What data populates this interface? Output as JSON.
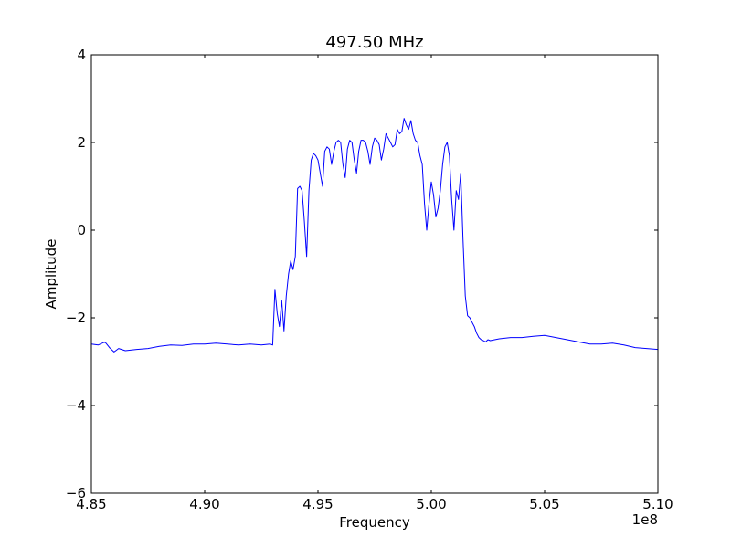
{
  "chart_data": {
    "type": "line",
    "title": "497.50 MHz",
    "xlabel": "Frequency",
    "ylabel": "Amplitude",
    "x_offset_label": "1e8",
    "xlim": [
      4.85,
      5.1
    ],
    "ylim": [
      -6,
      4
    ],
    "xticks": [
      4.85,
      4.9,
      4.95,
      5.0,
      5.05,
      5.1
    ],
    "xtick_labels": [
      "4.85",
      "4.90",
      "4.95",
      "5.00",
      "5.05",
      "5.10"
    ],
    "yticks": [
      -6,
      -4,
      -2,
      0,
      2,
      4
    ],
    "ytick_labels": [
      "−6",
      "−4",
      "−2",
      "0",
      "2",
      "4"
    ],
    "grid": false,
    "legend": "none",
    "series": [
      {
        "color": "#0000ff",
        "x": [
          4.85,
          4.853,
          4.856,
          4.858,
          4.86,
          4.862,
          4.865,
          4.87,
          4.875,
          4.88,
          4.885,
          4.89,
          4.895,
          4.9,
          4.905,
          4.91,
          4.915,
          4.92,
          4.925,
          4.929,
          4.93,
          4.931,
          4.932,
          4.933,
          4.934,
          4.935,
          4.936,
          4.937,
          4.938,
          4.939,
          4.94,
          4.941,
          4.942,
          4.943,
          4.944,
          4.945,
          4.946,
          4.947,
          4.948,
          4.949,
          4.95,
          4.951,
          4.952,
          4.953,
          4.954,
          4.955,
          4.956,
          4.957,
          4.958,
          4.959,
          4.96,
          4.961,
          4.962,
          4.963,
          4.964,
          4.965,
          4.966,
          4.967,
          4.968,
          4.969,
          4.97,
          4.971,
          4.972,
          4.973,
          4.974,
          4.975,
          4.976,
          4.977,
          4.978,
          4.979,
          4.98,
          4.981,
          4.982,
          4.983,
          4.984,
          4.985,
          4.986,
          4.987,
          4.988,
          4.989,
          4.99,
          4.991,
          4.992,
          4.993,
          4.994,
          4.995,
          4.996,
          4.997,
          4.998,
          4.999,
          5.0,
          5.001,
          5.002,
          5.003,
          5.004,
          5.005,
          5.006,
          5.007,
          5.008,
          5.009,
          5.01,
          5.011,
          5.012,
          5.013,
          5.014,
          5.015,
          5.016,
          5.017,
          5.018,
          5.019,
          5.02,
          5.021,
          5.022,
          5.023,
          5.024,
          5.025,
          5.026,
          5.028,
          5.03,
          5.035,
          5.04,
          5.045,
          5.05,
          5.055,
          5.06,
          5.065,
          5.07,
          5.075,
          5.08,
          5.085,
          5.09,
          5.095,
          5.1
        ],
        "y": [
          -2.6,
          -2.62,
          -2.55,
          -2.68,
          -2.78,
          -2.7,
          -2.75,
          -2.72,
          -2.7,
          -2.65,
          -2.62,
          -2.63,
          -2.6,
          -2.6,
          -2.58,
          -2.6,
          -2.62,
          -2.6,
          -2.62,
          -2.6,
          -2.62,
          -1.35,
          -1.9,
          -2.2,
          -1.6,
          -2.3,
          -1.5,
          -1.0,
          -0.7,
          -0.9,
          -0.6,
          0.95,
          1.0,
          0.9,
          0.2,
          -0.6,
          0.9,
          1.6,
          1.75,
          1.7,
          1.6,
          1.3,
          1.0,
          1.8,
          1.9,
          1.85,
          1.5,
          1.8,
          2.0,
          2.05,
          2.0,
          1.5,
          1.2,
          1.85,
          2.05,
          2.0,
          1.6,
          1.3,
          1.8,
          2.05,
          2.05,
          2.0,
          1.8,
          1.5,
          1.9,
          2.1,
          2.05,
          1.95,
          1.6,
          1.85,
          2.2,
          2.1,
          2.0,
          1.9,
          1.95,
          2.3,
          2.2,
          2.25,
          2.55,
          2.4,
          2.3,
          2.5,
          2.2,
          2.05,
          2.0,
          1.7,
          1.5,
          0.6,
          0.0,
          0.6,
          1.1,
          0.8,
          0.3,
          0.5,
          0.9,
          1.5,
          1.9,
          2.0,
          1.7,
          0.7,
          0.0,
          0.9,
          0.7,
          1.3,
          -0.2,
          -1.5,
          -1.95,
          -2.0,
          -2.1,
          -2.2,
          -2.35,
          -2.45,
          -2.5,
          -2.52,
          -2.55,
          -2.5,
          -2.52,
          -2.5,
          -2.48,
          -2.45,
          -2.45,
          -2.42,
          -2.4,
          -2.45,
          -2.5,
          -2.55,
          -2.6,
          -2.6,
          -2.58,
          -2.62,
          -2.68,
          -2.7,
          -2.72
        ]
      }
    ]
  }
}
